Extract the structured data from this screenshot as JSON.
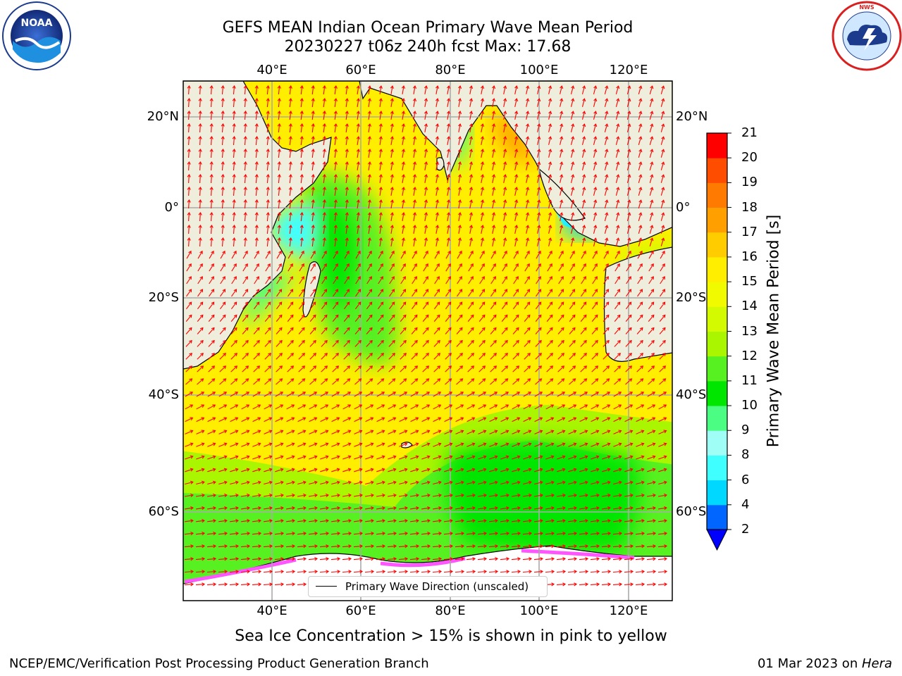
{
  "title_line1": "GEFS MEAN Indian Ocean Primary Wave Mean Period",
  "title_line2": "20230227 t06z 240h fcst   Max: 17.68",
  "caption": "Sea Ice Concentration > 15% is shown in pink to yellow",
  "footer_left": "NCEP/EMC/Verification Post Processing Product Generation Branch",
  "footer_date": "01 Mar 2023 on ",
  "footer_host": "Hera",
  "legend_label": "Primary Wave Direction (unscaled)",
  "colorbar_label": "Primary Wave Mean Period [s]",
  "logos": {
    "left": "NOAA",
    "right": "NATIONAL WEATHER SERVICE"
  },
  "chart_data": {
    "type": "heatmap",
    "lon_ticks": [
      "40°E",
      "60°E",
      "80°E",
      "100°E",
      "120°E"
    ],
    "lat_ticks": [
      "20°N",
      "0°",
      "20°S",
      "40°S",
      "60°S"
    ],
    "lon_range": [
      20,
      130
    ],
    "lat_range": [
      -72,
      28
    ],
    "colorbar_ticks": [
      2,
      4,
      6,
      8,
      9,
      10,
      11,
      12,
      13,
      14,
      15,
      16,
      17,
      18,
      19,
      20,
      21
    ],
    "colorbar_colors": [
      "#0066ff",
      "#00d8ff",
      "#3fffff",
      "#9ffff6",
      "#4cfd83",
      "#00e600",
      "#57f020",
      "#aaf500",
      "#d3fa00",
      "#f2fa00",
      "#ffee00",
      "#ffcc00",
      "#ffa000",
      "#ff7a00",
      "#ff4d00",
      "#ff0000"
    ],
    "colors": {
      "land": "#efeedd",
      "arrow": "#ff0000",
      "ice": "#ff55ff"
    }
  }
}
